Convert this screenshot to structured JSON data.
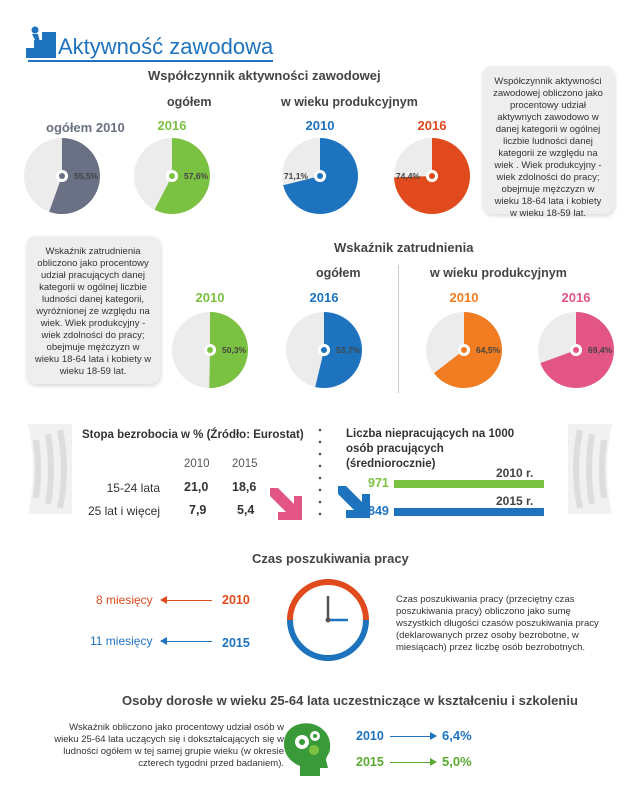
{
  "header": {
    "title": "Aktywność zawodowa"
  },
  "activity": {
    "title": "Współczynnik aktywności zawodowej",
    "group_total": "ogółem",
    "group_working_age": "w wieku produkcyjnym",
    "note": "Współczynnik aktywności zawodowej obliczono jako procentowy udział aktywnych zawodowo w danej kategorii w ogólnej liczbie ludności danej kategorii ze względu na wiek . Wiek produkcyjny - wiek zdolności do pracy; obejmuje mężczyzn w wieku 18-64 lata i kobiety w wieku 18-59 lat."
  },
  "employment": {
    "title": "Wskaźnik zatrudnienia",
    "group_total": "ogółem",
    "group_working_age": "w wieku produkcyjnym",
    "note": "Wskaźnik zatrudnienia obliczono jako procentowy udział pracujących danej kategorii w ogólnej liczbie ludności danej kategorii, wyróżnionej ze względu na wiek. Wiek produkcyjny - wiek zdolności do pracy; obejmuje mężczyzn w wieku 18-64 lata i kobiety w wieku 18-59 lat."
  },
  "unemployment": {
    "title": "Stopa bezrobocia w % (Źródło: Eurostat)",
    "col_2010": "2010",
    "col_2015": "2015",
    "rows": [
      {
        "label": "15-24 lata",
        "v2010": "21,0",
        "v2015": "18,6"
      },
      {
        "label": "25 lat i więcej",
        "v2010": "7,9",
        "v2015": "5,4"
      }
    ]
  },
  "dependency": {
    "title": "Liczba niepracujących na 1000 osób pracujących (średniorocznie)",
    "rows": [
      {
        "year": "2010 r.",
        "value": "971"
      },
      {
        "year": "2015 r.",
        "value": "849"
      }
    ]
  },
  "job_search": {
    "title": "Czas poszukiwania pracy",
    "rows": [
      {
        "label": "8 miesięcy",
        "year": "2010"
      },
      {
        "label": "11 miesięcy",
        "year": "2015"
      }
    ],
    "note": "Czas poszukiwania pracy (przeciętny czas poszukiwania pracy) obliczono jako sumę wszystkich długości czasów poszukiwania pracy (deklarowanych przez osoby bezrobotne, w miesiącach) przez liczbę osób bezrobotnych."
  },
  "education": {
    "title": "Osoby dorosłe w wieku 25-64 lata uczestniczące w kształceniu i szkoleniu",
    "note": "Wskaźnik obliczono jako procentowy udział osób w wieku 25-64 lata uczących się i dokształcających się w ludności ogółem w tej samej grupie wieku (w okresie czterech tygodni przed badaniem).",
    "rows": [
      {
        "year": "2010",
        "value": "6,4%"
      },
      {
        "year": "2015",
        "value": "5,0%"
      }
    ]
  },
  "colors": {
    "gray": "#6b7184",
    "green": "#7cc242",
    "blue": "#1e73be",
    "red": "#e04a1c",
    "orange": "#f27c22",
    "pink": "#e25585"
  },
  "chart_data": [
    {
      "type": "pie",
      "title": "Współczynnik aktywności zawodowej",
      "categories": [
        "ogółem 2010",
        "ogółem 2016",
        "w wieku produkcyjnym 2010",
        "w wieku produkcyjnym 2016"
      ],
      "values": [
        55.5,
        57.6,
        71.1,
        74.4
      ],
      "labels": [
        "55,5%",
        "57,6%",
        "71,1%",
        "74,4%"
      ]
    },
    {
      "type": "pie",
      "title": "Wskaźnik zatrudnienia",
      "categories": [
        "ogółem 2010",
        "ogółem 2016",
        "w wieku produkcyjnym 2010",
        "w wieku produkcyjnym 2016"
      ],
      "values": [
        50.3,
        53.7,
        64.5,
        69.4
      ],
      "labels": [
        "50,3%",
        "53,7%",
        "64,5%",
        "69,4%"
      ]
    }
  ]
}
